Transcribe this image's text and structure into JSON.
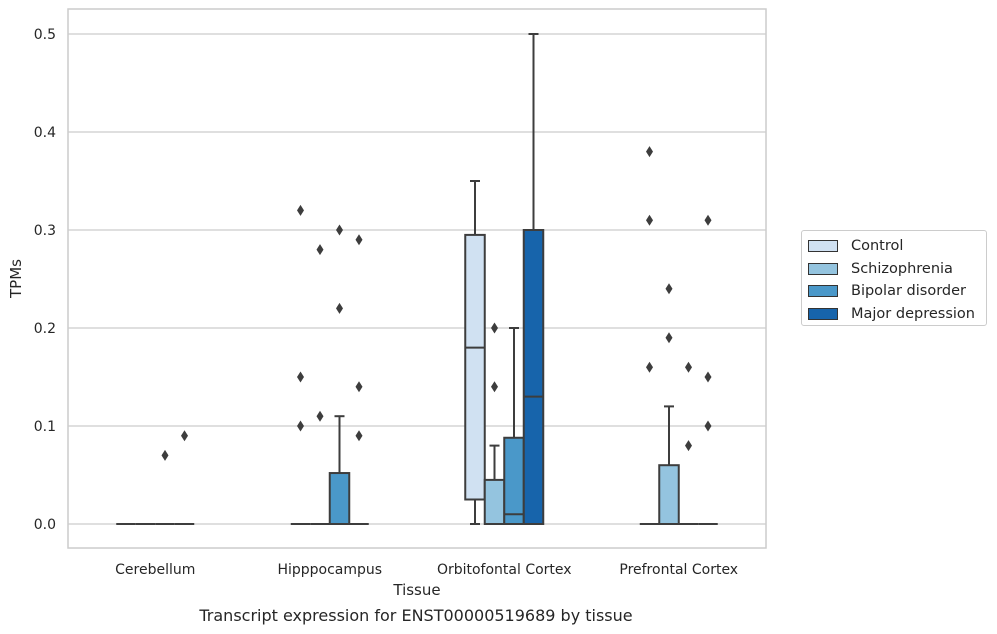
{
  "caption": "Transcript expression for ENST00000519689 by tissue",
  "chart_data": {
    "type": "box",
    "xlabel": "Tissue",
    "ylabel": "TPMs",
    "ylim": [
      -0.025,
      0.525
    ],
    "yticks": [
      "0.0",
      "0.1",
      "0.2",
      "0.3",
      "0.4",
      "0.5"
    ],
    "grid": "horizontal",
    "legend_position": "right",
    "categories": [
      "Cerebellum",
      "Hipppocampus",
      "Orbitofontal Cortex",
      "Prefrontal Cortex"
    ],
    "series": [
      {
        "name": "Control",
        "color": "#d0e1f2",
        "boxes": [
          {
            "q1": 0,
            "median": 0,
            "q3": 0,
            "whisker_low": 0,
            "whisker_high": 0,
            "outliers": []
          },
          {
            "q1": 0,
            "median": 0,
            "q3": 0,
            "whisker_low": 0,
            "whisker_high": 0,
            "outliers": [
              0.32,
              0.15,
              0.1
            ]
          },
          {
            "q1": 0.025,
            "median": 0.18,
            "q3": 0.295,
            "whisker_low": 0,
            "whisker_high": 0.35,
            "outliers": []
          },
          {
            "q1": 0,
            "median": 0,
            "q3": 0,
            "whisker_low": 0,
            "whisker_high": 0,
            "outliers": [
              0.38,
              0.31,
              0.16
            ]
          }
        ]
      },
      {
        "name": "Schizophrenia",
        "color": "#94c4df",
        "boxes": [
          {
            "q1": 0,
            "median": 0,
            "q3": 0,
            "whisker_low": 0,
            "whisker_high": 0,
            "outliers": []
          },
          {
            "q1": 0,
            "median": 0,
            "q3": 0,
            "whisker_low": 0,
            "whisker_high": 0,
            "outliers": [
              0.28,
              0.11
            ]
          },
          {
            "q1": 0,
            "median": 0,
            "q3": 0.045,
            "whisker_low": 0,
            "whisker_high": 0.08,
            "outliers": [
              0.2,
              0.14
            ]
          },
          {
            "q1": 0,
            "median": 0,
            "q3": 0.06,
            "whisker_low": 0,
            "whisker_high": 0.12,
            "outliers": [
              0.24,
              0.19
            ]
          }
        ]
      },
      {
        "name": "Bipolar disorder",
        "color": "#4a98c9",
        "boxes": [
          {
            "q1": 0,
            "median": 0,
            "q3": 0,
            "whisker_low": 0,
            "whisker_high": 0,
            "outliers": [
              0.07
            ]
          },
          {
            "q1": 0,
            "median": 0,
            "q3": 0.052,
            "whisker_low": 0,
            "whisker_high": 0.11,
            "outliers": [
              0.3,
              0.22
            ]
          },
          {
            "q1": 0,
            "median": 0.01,
            "q3": 0.088,
            "whisker_low": 0,
            "whisker_high": 0.2,
            "outliers": []
          },
          {
            "q1": 0,
            "median": 0,
            "q3": 0,
            "whisker_low": 0,
            "whisker_high": 0,
            "outliers": [
              0.16,
              0.08
            ]
          }
        ]
      },
      {
        "name": "Major depression",
        "color": "#1764ab",
        "boxes": [
          {
            "q1": 0,
            "median": 0,
            "q3": 0,
            "whisker_low": 0,
            "whisker_high": 0,
            "outliers": [
              0.09
            ]
          },
          {
            "q1": 0,
            "median": 0,
            "q3": 0,
            "whisker_low": 0,
            "whisker_high": 0,
            "outliers": [
              0.29,
              0.14,
              0.09
            ]
          },
          {
            "q1": 0,
            "median": 0.13,
            "q3": 0.3,
            "whisker_low": 0,
            "whisker_high": 0.5,
            "outliers": []
          },
          {
            "q1": 0,
            "median": 0,
            "q3": 0,
            "whisker_low": 0,
            "whisker_high": 0,
            "outliers": [
              0.31,
              0.15,
              0.1
            ]
          }
        ]
      }
    ]
  }
}
